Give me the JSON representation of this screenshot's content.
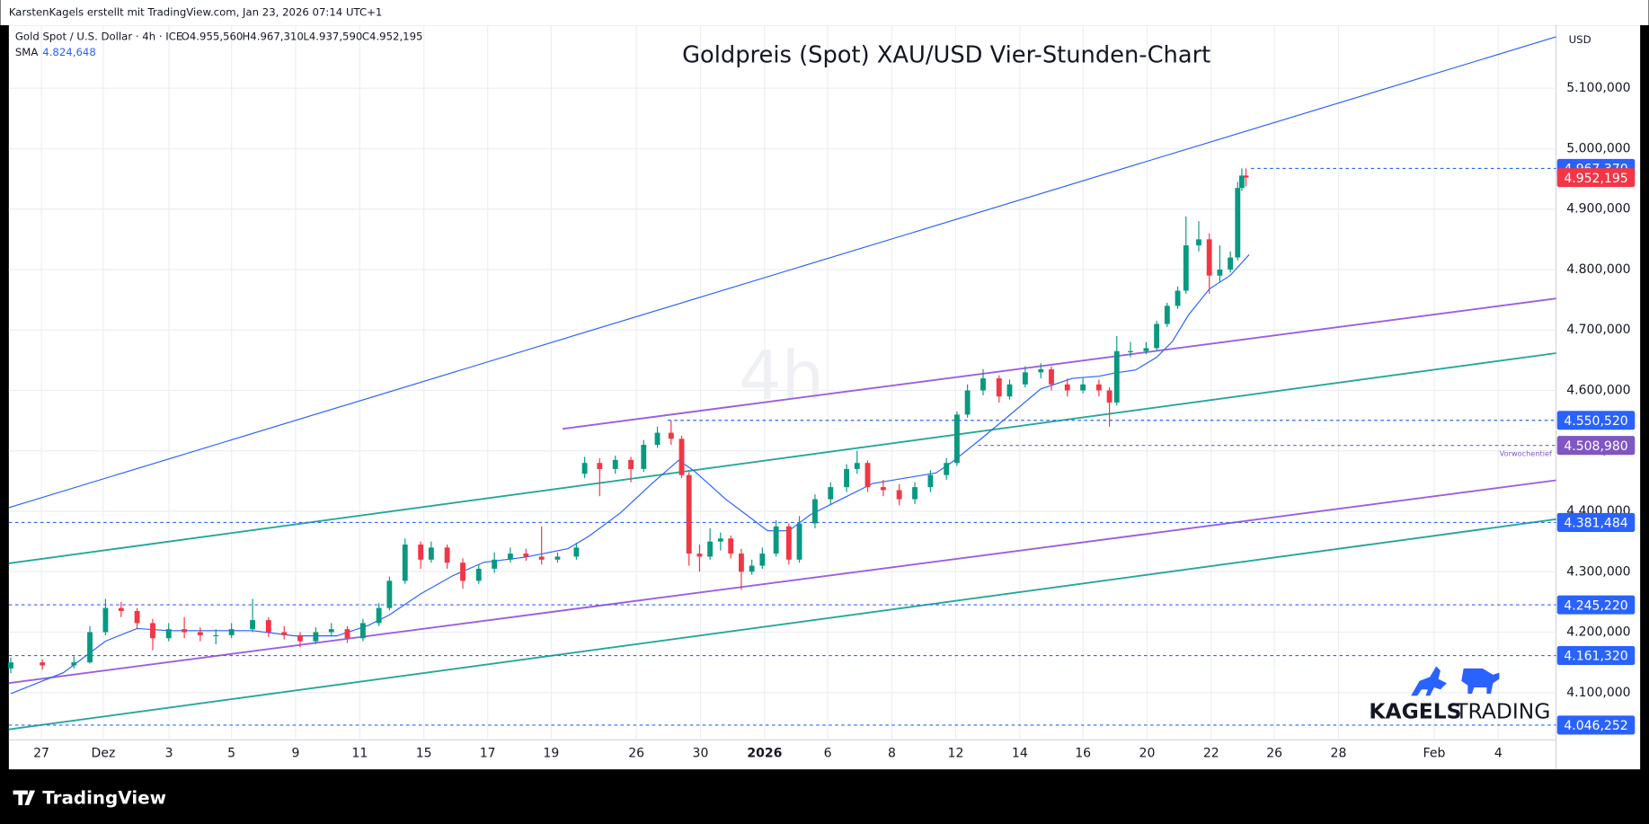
{
  "header": {
    "credit": "KarstenKagels erstellt mit TradingView.com, Jan 23, 2026 07:14 UTC+1",
    "symbol": "Gold Spot / U.S. Dollar · 4h · ICE",
    "ohlc": [
      "O4.955,560",
      "H4.967,310",
      "L4.937,590",
      "C4.952,195"
    ],
    "indicator": "SMA",
    "indicator_value": "4.824,648"
  },
  "branding": {
    "logo_bold": "KAGELS",
    "logo_light": "TRADING",
    "footer": "TradingView"
  },
  "chart_data": {
    "type": "candlestick",
    "title": "Goldpreis (Spot) XAU/USD Vier-Stunden-Chart",
    "watermark": "4h",
    "currency": "USD",
    "up_color": "#089981",
    "down_color": "#f23645",
    "grid": true,
    "xlim": [
      -1.02,
      47.48
    ],
    "ylim": [
      4021.7,
      5204.3
    ],
    "xticks": [
      {
        "value": 0,
        "label": "27"
      },
      {
        "value": 1.94,
        "label": "Dez"
      },
      {
        "value": 4,
        "label": "3"
      },
      {
        "value": 5.96,
        "label": "5"
      },
      {
        "value": 7.97,
        "label": "9"
      },
      {
        "value": 9.98,
        "label": "11"
      },
      {
        "value": 11.99,
        "label": "15"
      },
      {
        "value": 13.99,
        "label": "17"
      },
      {
        "value": 15.98,
        "label": "19"
      },
      {
        "value": 18.65,
        "label": "26"
      },
      {
        "value": 20.66,
        "label": "30"
      },
      {
        "value": 22.67,
        "label": "2026",
        "bold": true
      },
      {
        "value": 24.65,
        "label": "6"
      },
      {
        "value": 26.66,
        "label": "8"
      },
      {
        "value": 28.66,
        "label": "12"
      },
      {
        "value": 30.67,
        "label": "14"
      },
      {
        "value": 32.65,
        "label": "16"
      },
      {
        "value": 34.66,
        "label": "20"
      },
      {
        "value": 36.67,
        "label": "22"
      },
      {
        "value": 38.65,
        "label": "26"
      },
      {
        "value": 40.66,
        "label": "28"
      },
      {
        "value": 43.66,
        "label": "Feb"
      },
      {
        "value": 45.67,
        "label": "4"
      }
    ],
    "yticks": [
      {
        "value": 4100,
        "label": "4.100,000"
      },
      {
        "value": 4200,
        "label": "4.200,000"
      },
      {
        "value": 4300,
        "label": "4.300,000"
      },
      {
        "value": 4400,
        "label": "4.400,000"
      },
      {
        "value": 4500,
        "label": "4.500,000"
      },
      {
        "value": 4600,
        "label": "4.600,000"
      },
      {
        "value": 4700,
        "label": "4.700,000"
      },
      {
        "value": 4800,
        "label": "4.800,000"
      },
      {
        "value": 4900,
        "label": "4.900,000"
      },
      {
        "value": 5000,
        "label": "5.000,000"
      },
      {
        "value": 5100,
        "label": "5.100,000"
      }
    ],
    "x": [
      -0.96,
      0.03,
      1.02,
      1.52,
      2.01,
      2.5,
      3,
      3.49,
      3.99,
      4.48,
      4.98,
      5.47,
      5.96,
      6.62,
      7.12,
      7.61,
      8.11,
      8.6,
      9.09,
      9.59,
      10.08,
      10.58,
      10.91,
      11.4,
      11.89,
      12.22,
      12.72,
      13.21,
      13.71,
      14.2,
      14.7,
      15.19,
      15.68,
      16.18,
      16.77,
      17.03,
      17.5,
      17.99,
      18.48,
      18.88,
      19.31,
      19.74,
      20.07,
      20.3,
      20.63,
      20.96,
      21.29,
      21.61,
      21.94,
      22.27,
      22.6,
      23.03,
      23.43,
      23.76,
      24.25,
      24.74,
      25.24,
      25.57,
      25.9,
      26.39,
      26.89,
      27.38,
      27.87,
      28.37,
      28.7,
      29.03,
      29.52,
      30.02,
      30.35,
      30.84,
      31.33,
      31.66,
      32.16,
      32.65,
      33.15,
      33.48,
      33.71,
      34.14,
      34.63,
      34.96,
      35.29,
      35.62,
      35.88,
      36.28,
      36.61,
      36.94,
      37.27,
      37.5,
      37.63,
      37.76
    ],
    "open": [
      4140,
      4150,
      4145,
      4150,
      4200,
      4240,
      4235,
      4215,
      4190,
      4205,
      4200,
      4195,
      4195,
      4205,
      4220,
      4200,
      4195,
      4185,
      4200,
      4205,
      4190,
      4215,
      4240,
      4285,
      4345,
      4320,
      4340,
      4315,
      4285,
      4305,
      4320,
      4330,
      4325,
      4320,
      4325,
      4462,
      4480,
      4470,
      4485,
      4470,
      4510,
      4530,
      4520,
      4460,
      4330,
      4325,
      4350,
      4355,
      4330,
      4300,
      4310,
      4330,
      4375,
      4320,
      4380,
      4420,
      4440,
      4470,
      4480,
      4440,
      4435,
      4420,
      4440,
      4460,
      4480,
      4560,
      4600,
      4620,
      4590,
      4610,
      4630,
      4635,
      4610,
      4600,
      4610,
      4600,
      4580,
      4665,
      4665,
      4670,
      4710,
      4740,
      4765,
      4840,
      4850,
      4790,
      4800,
      4820,
      4935,
      4955.56
    ],
    "high": [
      4158,
      4155,
      4160,
      4210,
      4255,
      4250,
      4240,
      4222,
      4215,
      4225,
      4208,
      4205,
      4215,
      4255,
      4225,
      4210,
      4200,
      4208,
      4215,
      4210,
      4222,
      4248,
      4292,
      4355,
      4350,
      4350,
      4345,
      4322,
      4312,
      4332,
      4340,
      4338,
      4375,
      4332,
      4348,
      4490,
      4488,
      4492,
      4490,
      4518,
      4540,
      4550,
      4525,
      4465,
      4345,
      4372,
      4365,
      4360,
      4338,
      4320,
      4340,
      4385,
      4380,
      4392,
      4428,
      4448,
      4478,
      4500,
      4484,
      4452,
      4445,
      4448,
      4468,
      4488,
      4565,
      4610,
      4635,
      4625,
      4618,
      4640,
      4645,
      4640,
      4620,
      4620,
      4618,
      4605,
      4690,
      4680,
      4680,
      4715,
      4745,
      4772,
      4888,
      4880,
      4860,
      4840,
      4830,
      4945,
      4967.37,
      4967.31
    ],
    "low": [
      4132,
      4138,
      4140,
      4148,
      4195,
      4225,
      4205,
      4170,
      4185,
      4190,
      4185,
      4180,
      4190,
      4200,
      4192,
      4188,
      4175,
      4180,
      4195,
      4182,
      4185,
      4210,
      4236,
      4280,
      4305,
      4315,
      4305,
      4272,
      4280,
      4298,
      4315,
      4318,
      4312,
      4315,
      4320,
      4455,
      4425,
      4462,
      4448,
      4465,
      4505,
      4510,
      4455,
      4310,
      4300,
      4320,
      4335,
      4322,
      4270,
      4295,
      4305,
      4325,
      4312,
      4315,
      4372,
      4412,
      4432,
      4462,
      4432,
      4425,
      4410,
      4412,
      4432,
      4452,
      4475,
      4555,
      4592,
      4580,
      4585,
      4605,
      4620,
      4600,
      4590,
      4595,
      4590,
      4540,
      4575,
      4655,
      4660,
      4665,
      4705,
      4735,
      4760,
      4830,
      4760,
      4780,
      4795,
      4815,
      4930,
      4937.59
    ],
    "close": [
      4150,
      4145,
      4150,
      4200,
      4240,
      4235,
      4215,
      4190,
      4205,
      4200,
      4195,
      4195,
      4205,
      4220,
      4200,
      4195,
      4185,
      4200,
      4205,
      4190,
      4215,
      4240,
      4285,
      4345,
      4320,
      4340,
      4315,
      4285,
      4305,
      4320,
      4330,
      4325,
      4320,
      4325,
      4340,
      4480,
      4470,
      4485,
      4470,
      4510,
      4530,
      4520,
      4460,
      4330,
      4325,
      4350,
      4355,
      4330,
      4300,
      4310,
      4330,
      4375,
      4320,
      4380,
      4420,
      4440,
      4470,
      4480,
      4440,
      4435,
      4420,
      4440,
      4460,
      4480,
      4560,
      4600,
      4620,
      4590,
      4610,
      4630,
      4635,
      4610,
      4600,
      4610,
      4600,
      4580,
      4665,
      4665,
      4670,
      4710,
      4740,
      4765,
      4840,
      4850,
      4790,
      4800,
      4820,
      4935,
      4955.56,
      4952.195
    ],
    "sma": {
      "color": "#2962ff",
      "x": [
        -0.96,
        0.69,
        2.01,
        3,
        3.99,
        5.3,
        6.62,
        7.94,
        9.26,
        10.25,
        10.91,
        11.89,
        12.88,
        13.87,
        15.19,
        16.51,
        17.17,
        18.15,
        19.14,
        19.97,
        20.46,
        21.45,
        22.11,
        22.77,
        23.43,
        24.09,
        25.07,
        26.06,
        27.05,
        28.04,
        28.53,
        29.36,
        30.35,
        31.33,
        32.32,
        33.15,
        33.64,
        34.3,
        34.96,
        35.45,
        35.95,
        36.61,
        37.27,
        37.86
      ],
      "values": [
        4098.3,
        4133,
        4185.2,
        4206.1,
        4202.6,
        4202.6,
        4202.6,
        4193.9,
        4193.9,
        4211.3,
        4228.7,
        4263.5,
        4293,
        4315.6,
        4324.3,
        4338.2,
        4359.1,
        4397.4,
        4446.1,
        4484.3,
        4466.9,
        4420,
        4393.9,
        4367.8,
        4367.8,
        4393.9,
        4420,
        4446.1,
        4454.8,
        4463.5,
        4480.8,
        4515.6,
        4559.1,
        4602.6,
        4620,
        4623.4,
        4628.7,
        4633.9,
        4654.7,
        4680.8,
        4724.3,
        4767.8,
        4790.4,
        4824.648
      ]
    },
    "trendlines": [
      {
        "color": "#2962ff",
        "x": [
          -1.02,
          47.48
        ],
        "y": [
          4406.1,
          5185.1
        ]
      },
      {
        "color": "#9c5ee0",
        "x": [
          16.34,
          47.48
        ],
        "y": [
          4536.5,
          4752.1
        ]
      },
      {
        "color": "#9c5ee0",
        "x": [
          -1.02,
          47.48
        ],
        "y": [
          4115.7,
          4451.3
        ]
      },
      {
        "color": "#26a69a",
        "x": [
          -1.02,
          47.48
        ],
        "y": [
          4313.9,
          4661.7
        ]
      },
      {
        "color": "#26a69a",
        "x": [
          -1.02,
          47.48
        ],
        "y": [
          4039.1,
          4386.9
        ]
      }
    ],
    "levels": [
      {
        "value": 4967.37,
        "label": "4.967,370",
        "color": "#2962ff",
        "start": 37.92
      },
      {
        "value": 4952.195,
        "label": "4.952,195",
        "color": "#f23645"
      },
      {
        "value": 4550.52,
        "label": "4.550,520",
        "color": "#2962ff",
        "start": 19.64
      },
      {
        "value": 4508.98,
        "label": "4.508,980",
        "color": "#7e57c2",
        "start": 29.36,
        "note": "Vorwochentief"
      },
      {
        "value": 4381.484,
        "label": "4.381,484",
        "color": "#2962ff",
        "start": -1.02
      },
      {
        "value": 4245.22,
        "label": "4.245,220",
        "color": "#2962ff",
        "start": -1.02
      },
      {
        "value": 4161.32,
        "label": "4.161,320",
        "color": "#2962ff",
        "start": -1.02
      },
      {
        "value": 4046.252,
        "label": "4.046,252",
        "color": "#2962ff",
        "start": -1.02
      }
    ]
  }
}
